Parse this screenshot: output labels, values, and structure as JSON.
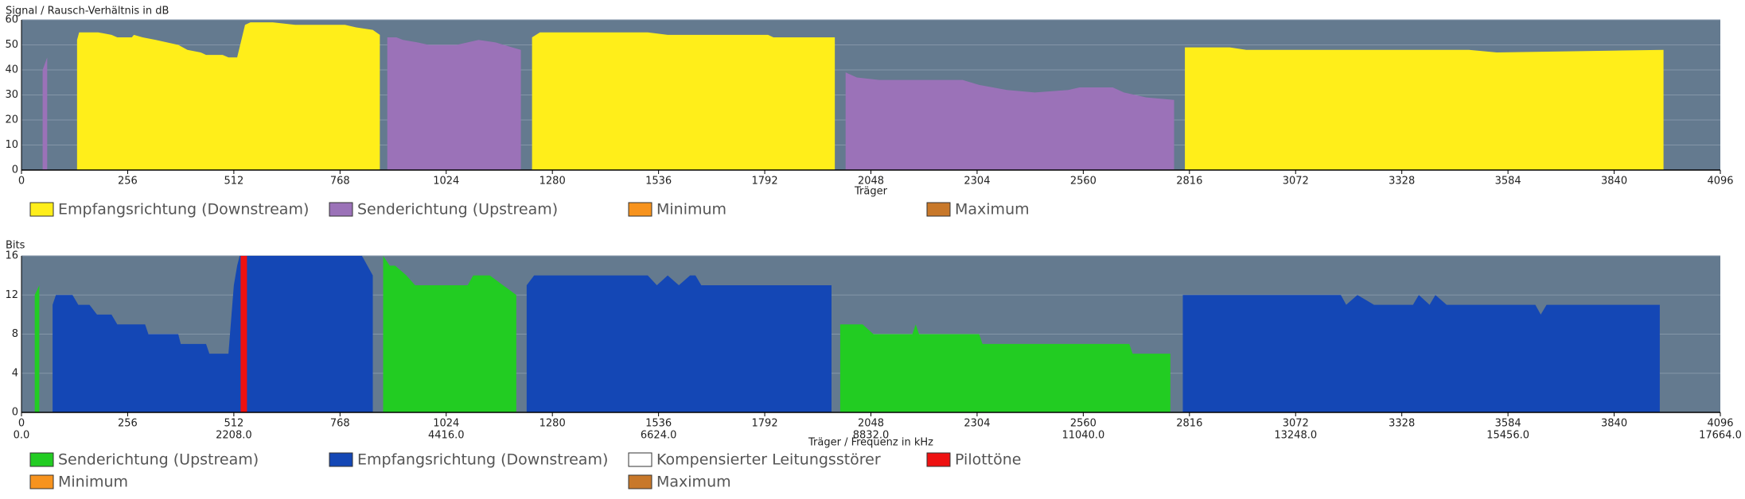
{
  "chart_data": [
    {
      "type": "area",
      "ylabel": "Signal / Rausch-Verhältnis in dB",
      "xlabel": "Träger",
      "xlim": [
        0,
        4096
      ],
      "xticks": [
        0,
        256,
        512,
        768,
        1024,
        1280,
        1536,
        1792,
        2048,
        2304,
        2560,
        2816,
        3072,
        3328,
        3584,
        3840,
        4096
      ],
      "ylim": [
        0,
        60
      ],
      "yticks": [
        0,
        10,
        20,
        30,
        40,
        50,
        60
      ],
      "grid": true,
      "series": [
        {
          "name": "Empfangsrichtung (Downstream)",
          "color": "#ffee1a",
          "x": [
            134,
            139,
            155,
            185,
            217,
            231,
            266,
            271,
            292,
            324,
            351,
            378,
            400,
            432,
            445,
            485,
            499,
            520,
            539,
            552,
            606,
            660,
            780,
            807,
            847,
            864,
            null,
            1231,
            1250,
            1510,
            1558,
            1800,
            1813,
            1961,
            null,
            2805,
            2913,
            2953,
            3490,
            3557,
            3959
          ],
          "values": [
            52,
            55,
            55,
            55,
            54,
            53,
            53,
            54,
            53,
            52,
            51,
            50,
            48,
            47,
            46,
            46,
            45,
            45,
            58,
            59,
            59,
            58,
            58,
            57,
            56,
            54,
            null,
            53,
            55,
            55,
            54,
            54,
            53,
            53,
            null,
            49,
            49,
            48,
            48,
            47,
            48
          ]
        },
        {
          "name": "Senderichtung (Upstream)",
          "color": "#9b72b8",
          "x": [
            51,
            62,
            null,
            882,
            904,
            920,
            955,
            982,
            1049,
            1102,
            1143,
            1183,
            1204,
            null,
            1987,
            2014,
            2068,
            2269,
            2309,
            2376,
            2443,
            2524,
            2551,
            2631,
            2658,
            2712,
            2779
          ],
          "values": [
            40,
            45,
            null,
            53,
            53,
            52,
            51,
            50,
            50,
            52,
            51,
            49,
            48,
            null,
            39,
            37,
            36,
            36,
            34,
            32,
            31,
            32,
            33,
            33,
            31,
            29,
            28
          ]
        },
        {
          "name": "Minimum",
          "color": "#f7931e",
          "x": [],
          "values": []
        },
        {
          "name": "Maximum",
          "color": "#c8782a",
          "x": [],
          "values": []
        }
      ]
    },
    {
      "type": "area",
      "ylabel": "Bits",
      "xlabel": "Träger / Frequenz in kHz",
      "xlim": [
        0,
        4096
      ],
      "xticks": [
        0,
        256,
        512,
        768,
        1024,
        1280,
        1536,
        1792,
        2048,
        2304,
        2560,
        2816,
        3072,
        3328,
        3584,
        3840,
        4096
      ],
      "x2lim": [
        0,
        17664
      ],
      "x2ticks": [
        {
          "value": 0,
          "label": "0.0"
        },
        {
          "value": 2208,
          "label": "2208.0"
        },
        {
          "value": 4416,
          "label": "4416.0"
        },
        {
          "value": 6624,
          "label": "6624.0"
        },
        {
          "value": 8832,
          "label": "8832.0"
        },
        {
          "value": 11040,
          "label": "11040.0"
        },
        {
          "value": 13248,
          "label": "13248.0"
        },
        {
          "value": 15456,
          "label": "15456.0"
        },
        {
          "value": 17664,
          "label": "17664.0"
        }
      ],
      "ylim": [
        0,
        16
      ],
      "yticks": [
        0,
        4,
        8,
        12,
        16
      ],
      "grid": true,
      "series": [
        {
          "name": "Senderichtung (Upstream)",
          "color": "#22cc22",
          "x": [
            32,
            43,
            null,
            872,
            888,
            901,
            928,
            949,
            1076,
            1089,
            1129,
            1161,
            1193,
            null,
            1974,
            2028,
            2054,
            2148,
            2156,
            2164,
            2309,
            2317,
            2671,
            2679,
            2770
          ],
          "values": [
            12,
            13,
            null,
            16,
            15,
            15,
            14,
            13,
            13,
            14,
            14,
            13,
            12,
            null,
            9,
            9,
            8,
            8,
            9,
            8,
            8,
            7,
            7,
            6,
            6
          ]
        },
        {
          "name": "Empfangsrichtung (Downstream)",
          "color": "#1447b5",
          "x": [
            75,
            83,
            123,
            137,
            164,
            182,
            217,
            231,
            298,
            306,
            378,
            384,
            445,
            453,
            499,
            512,
            520,
            526,
            821,
            847,
            null,
            1218,
            1236,
            1510,
            1532,
            1558,
            1585,
            1612,
            1625,
            1639,
            1953,
            null,
            2800,
            3181,
            3194,
            3221,
            3261,
            3355,
            3369,
            3395,
            3409,
            3436,
            3650,
            3663,
            3677,
            3950
          ],
          "values": [
            11,
            12,
            12,
            11,
            11,
            10,
            10,
            9,
            9,
            8,
            8,
            7,
            7,
            6,
            6,
            13,
            15,
            16,
            16,
            14,
            null,
            13,
            14,
            14,
            13,
            14,
            13,
            14,
            14,
            13,
            13,
            null,
            12,
            12,
            11,
            12,
            11,
            11,
            12,
            11,
            12,
            11,
            11,
            10,
            11,
            11
          ]
        },
        {
          "name": "Kompensierter Leitungsstörer",
          "color": "#ffffff",
          "x": [],
          "values": []
        },
        {
          "name": "Pilottöne",
          "color": "#ee1111",
          "type": "bar",
          "x": [
            536
          ],
          "values": [
            16
          ]
        },
        {
          "name": "Minimum",
          "color": "#f7931e",
          "x": [],
          "values": []
        },
        {
          "name": "Maximum",
          "color": "#c8782a",
          "x": [],
          "values": []
        }
      ]
    }
  ]
}
